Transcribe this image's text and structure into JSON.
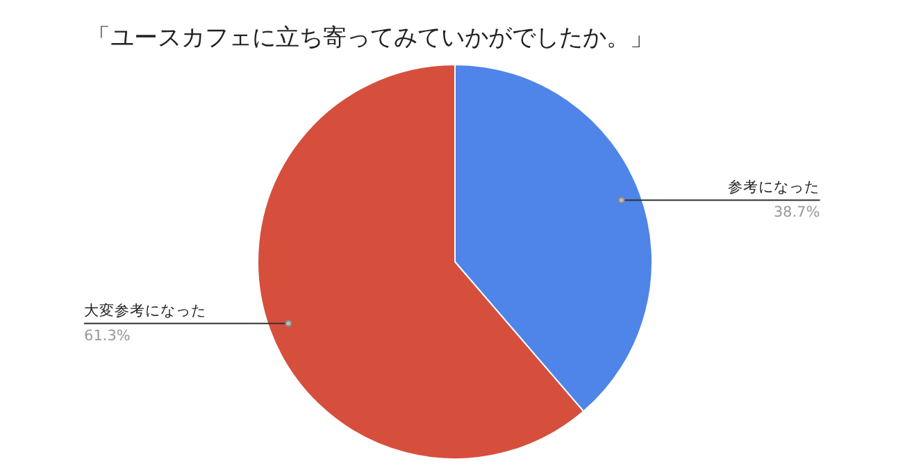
{
  "chart_data": {
    "type": "pie",
    "title": "「ユースカフェに立ち寄ってみていかがでしたか。」",
    "categories": [
      "参考になった",
      "大変参考になった"
    ],
    "values": [
      38.7,
      61.3
    ],
    "colors": [
      "#4f84e8",
      "#d64f3d"
    ],
    "value_labels": [
      "38.7%",
      "61.3%"
    ]
  }
}
